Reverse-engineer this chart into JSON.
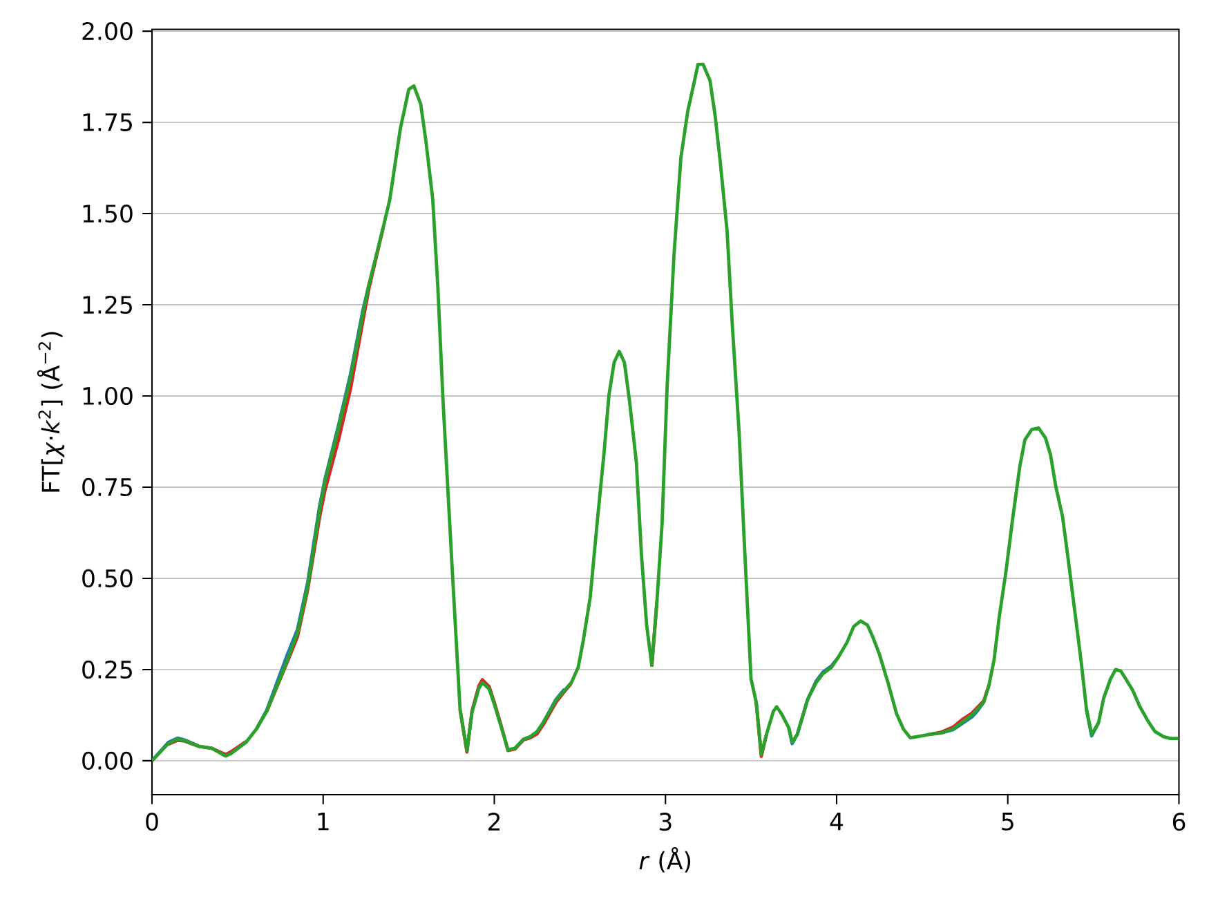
{
  "chart_data": {
    "type": "line",
    "xlabel": "*r* (Å)",
    "ylabel": "FT[*χ*·*k*$^{2}$] (Å$^{−2}$)",
    "xlim": [
      0,
      6
    ],
    "ylim": [
      -0.093,
      2.005
    ],
    "xticks": [
      0,
      1,
      2,
      3,
      4,
      5,
      6
    ],
    "yticks": [
      {
        "value": 0,
        "label": "0.00"
      },
      {
        "value": 0.25,
        "label": "0.25"
      },
      {
        "value": 0.5,
        "label": "0.50"
      },
      {
        "value": 0.75,
        "label": "0.75"
      },
      {
        "value": 1,
        "label": "1.00"
      },
      {
        "value": 1.25,
        "label": "1.25"
      },
      {
        "value": 1.5,
        "label": "1.50"
      },
      {
        "value": 1.75,
        "label": "1.75"
      },
      {
        "value": 2,
        "label": "2.00"
      }
    ],
    "grid": "y",
    "marker": "none",
    "line_style": "solid",
    "x": [
      0,
      0.095,
      0.15,
      0.19,
      0.27,
      0.35,
      0.43,
      0.46,
      0.55,
      0.61,
      0.67,
      0.79,
      0.85,
      0.91,
      0.98,
      1.01,
      1.09,
      1.16,
      1.23,
      1.27,
      1.35,
      1.39,
      1.45,
      1.5,
      1.53,
      1.57,
      1.6,
      1.64,
      1.67,
      1.7,
      1.75,
      1.8,
      1.84,
      1.87,
      1.91,
      1.93,
      1.97,
      2.0,
      2.04,
      2.08,
      2.12,
      2.17,
      2.21,
      2.25,
      2.29,
      2.36,
      2.41,
      2.45,
      2.49,
      2.52,
      2.56,
      2.6,
      2.64,
      2.67,
      2.7,
      2.73,
      2.76,
      2.79,
      2.83,
      2.86,
      2.89,
      2.92,
      2.95,
      2.98,
      3.01,
      3.05,
      3.09,
      3.13,
      3.17,
      3.19,
      3.22,
      3.26,
      3.29,
      3.32,
      3.36,
      3.39,
      3.43,
      3.46,
      3.5,
      3.53,
      3.56,
      3.59,
      3.63,
      3.65,
      3.68,
      3.72,
      3.74,
      3.77,
      3.83,
      3.88,
      3.92,
      3.97,
      4.01,
      4.06,
      4.1,
      4.14,
      4.18,
      4.21,
      4.25,
      4.3,
      4.35,
      4.39,
      4.43,
      4.47,
      4.54,
      4.61,
      4.68,
      4.74,
      4.79,
      4.82,
      4.86,
      4.89,
      4.92,
      4.95,
      4.99,
      5.03,
      5.07,
      5.1,
      5.14,
      5.18,
      5.22,
      5.25,
      5.28,
      5.32,
      5.35,
      5.39,
      5.43,
      5.46,
      5.49,
      5.53,
      5.56,
      5.6,
      5.63,
      5.66,
      5.69,
      5.73,
      5.77,
      5.82,
      5.86,
      5.91,
      5.95,
      6.0
    ],
    "series": [
      {
        "color": "#1f77b4",
        "values": [
          0,
          0.05,
          0.062,
          0.057,
          0.041,
          null,
          null,
          null,
          null,
          0.087,
          0.138,
          0.29,
          0.36,
          0.49,
          0.7,
          0.77,
          0.92,
          1.06,
          1.23,
          1.31,
          null,
          null,
          null,
          null,
          null,
          null,
          null,
          null,
          null,
          null,
          null,
          null,
          null,
          null,
          null,
          null,
          null,
          null,
          null,
          null,
          null,
          null,
          null,
          null,
          0.108,
          0.168,
          0.196,
          null,
          null,
          null,
          null,
          null,
          null,
          null,
          null,
          null,
          null,
          null,
          null,
          null,
          null,
          null,
          null,
          null,
          null,
          null,
          null,
          null,
          null,
          null,
          null,
          null,
          null,
          null,
          null,
          null,
          null,
          null,
          null,
          null,
          null,
          null,
          null,
          null,
          null,
          0.091,
          0.047,
          0.072,
          0.167,
          0.218,
          0.243,
          0.26,
          0.284,
          null,
          null,
          null,
          null,
          null,
          null,
          null,
          null,
          null,
          null,
          null,
          null,
          0.076,
          0.085,
          0.104,
          0.12,
          0.135,
          0.161,
          null,
          null,
          null,
          null,
          null,
          null,
          null,
          null,
          null,
          null,
          null,
          null,
          null,
          null,
          null,
          null,
          0.14,
          0.068,
          0.104,
          null,
          null,
          null,
          null,
          null,
          null,
          null,
          null,
          null,
          null,
          null,
          null
        ]
      },
      {
        "color": "#d62728",
        "values": [
          null,
          0.045,
          0.056,
          0.054,
          0.04,
          0.034,
          0.017,
          0.024,
          0.053,
          null,
          0.135,
          0.27,
          0.34,
          0.47,
          0.67,
          0.74,
          0.88,
          1.02,
          1.2,
          1.3,
          1.46,
          null,
          null,
          null,
          null,
          null,
          null,
          null,
          null,
          null,
          null,
          0.14,
          0.024,
          0.137,
          0.205,
          0.222,
          0.203,
          0.16,
          0.096,
          0.028,
          0.032,
          0.057,
          0.063,
          0.074,
          0.102,
          0.16,
          0.19,
          0.212,
          null,
          null,
          null,
          null,
          null,
          null,
          null,
          null,
          null,
          null,
          null,
          null,
          null,
          0.258,
          0.436,
          null,
          null,
          null,
          null,
          null,
          null,
          null,
          null,
          null,
          null,
          null,
          null,
          null,
          null,
          null,
          null,
          0.161,
          0.012,
          0.072,
          null,
          null,
          null,
          null,
          null,
          null,
          null,
          null,
          null,
          null,
          null,
          null,
          null,
          null,
          null,
          null,
          null,
          null,
          null,
          null,
          null,
          null,
          0.072,
          0.078,
          0.092,
          0.115,
          0.13,
          0.145,
          0.164,
          0.207,
          null,
          null,
          null,
          null,
          null,
          null,
          null,
          null,
          null,
          null,
          null,
          null,
          null,
          null,
          null,
          null,
          null,
          null,
          null,
          null,
          null,
          null,
          null,
          null,
          null,
          null,
          null,
          null,
          null,
          null
        ]
      },
      {
        "color": "#2ca02c",
        "values": [
          0,
          0.047,
          0.059,
          0.055,
          0.04,
          0.034,
          0.013,
          0.019,
          0.051,
          0.087,
          0.135,
          0.275,
          0.351,
          0.478,
          0.69,
          0.764,
          0.912,
          1.05,
          1.22,
          1.31,
          1.46,
          1.54,
          1.73,
          1.84,
          1.85,
          1.8,
          1.7,
          1.54,
          1.3,
          0.99,
          0.56,
          0.14,
          0.028,
          0.133,
          0.199,
          0.214,
          0.197,
          0.155,
          0.093,
          0.03,
          0.034,
          0.059,
          0.066,
          0.08,
          0.108,
          0.165,
          0.193,
          0.214,
          0.256,
          0.33,
          0.447,
          0.648,
          0.838,
          1.003,
          1.092,
          1.122,
          1.092,
          0.986,
          0.817,
          0.563,
          0.372,
          0.262,
          0.436,
          0.648,
          1.029,
          1.388,
          1.653,
          1.78,
          1.865,
          1.909,
          1.909,
          1.865,
          1.769,
          1.642,
          1.452,
          1.198,
          0.902,
          0.605,
          0.224,
          0.161,
          0.017,
          0.072,
          0.135,
          0.148,
          0.127,
          0.091,
          0.051,
          0.072,
          0.167,
          0.214,
          0.239,
          0.256,
          0.284,
          0.324,
          0.368,
          0.383,
          0.372,
          0.341,
          0.292,
          0.214,
          0.129,
          0.087,
          0.063,
          0.066,
          0.072,
          0.076,
          0.087,
          0.108,
          0.125,
          0.14,
          0.161,
          0.207,
          0.277,
          0.394,
          0.521,
          0.669,
          0.806,
          0.88,
          0.908,
          0.912,
          0.885,
          0.838,
          0.753,
          0.669,
          0.563,
          0.415,
          0.267,
          0.14,
          0.072,
          0.104,
          0.171,
          0.224,
          0.25,
          0.246,
          0.224,
          0.193,
          0.15,
          0.108,
          0.08,
          0.066,
          0.061,
          0.061
        ]
      }
    ]
  }
}
